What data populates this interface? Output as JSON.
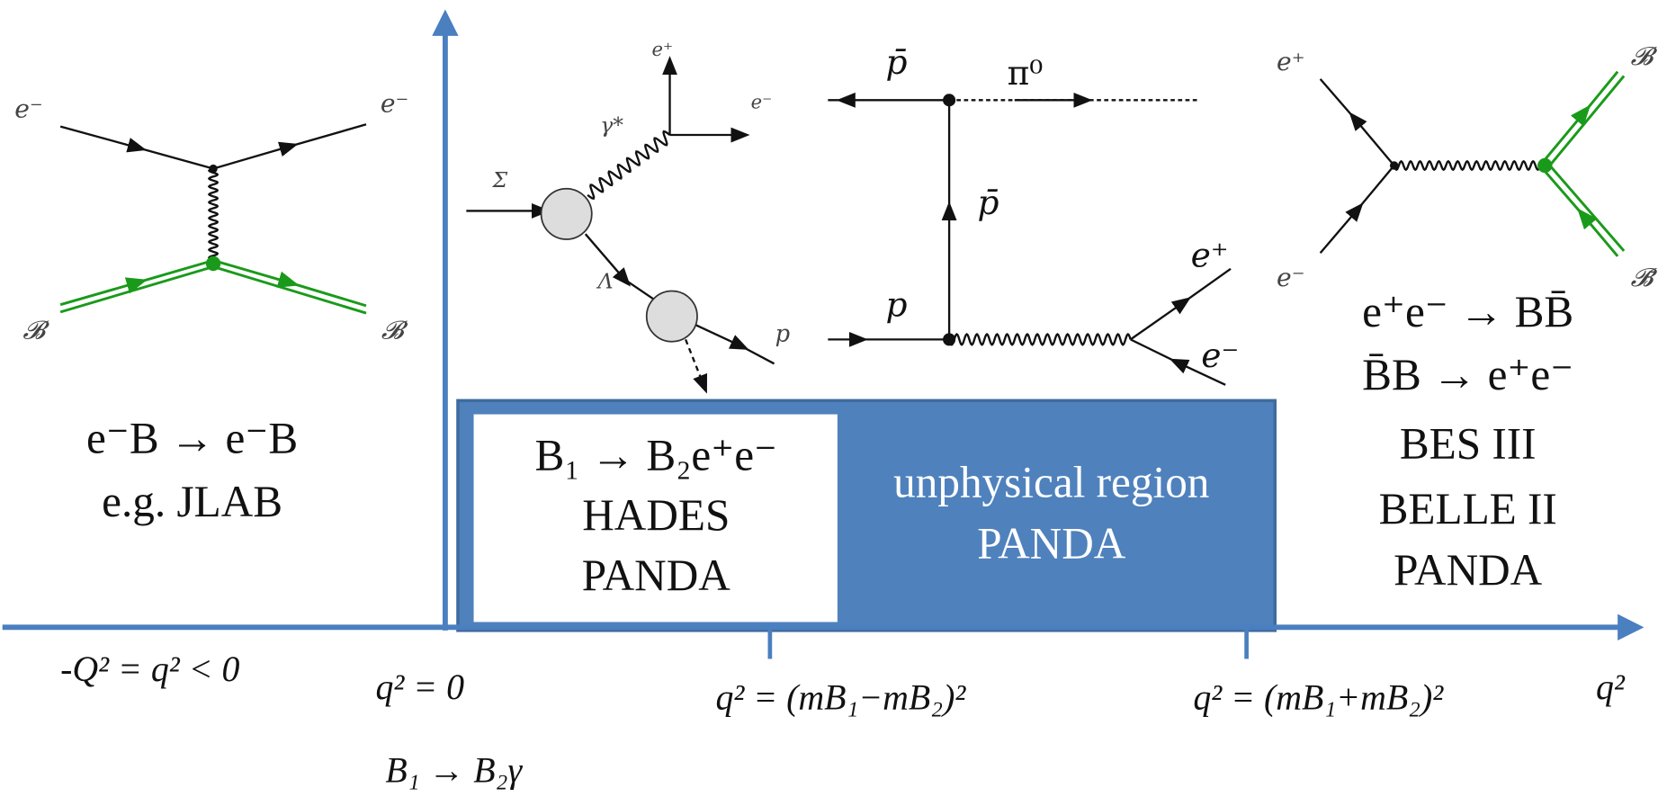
{
  "diagrams": [
    {
      "labels": [
        "e⁻",
        "e⁻",
        "𝓑",
        "𝓑"
      ],
      "caption": [
        "e⁻B → e⁻B",
        "e.g. JLAB"
      ]
    },
    {
      "labels": [
        "e⁺",
        "e⁻",
        "γ*",
        "Σ",
        "Λ",
        "p"
      ]
    },
    {
      "labels": [
        "p̄",
        "π⁰",
        "p̄",
        "p",
        "e⁺",
        "e⁻"
      ]
    },
    {
      "labels": [
        "e⁺",
        "e⁻",
        "𝓑",
        "𝓑̄"
      ],
      "caption": [
        "e⁺e⁻ → BB̄",
        "B̄B → e⁺e⁻",
        "BES III",
        "BELLE II",
        "PANDA"
      ]
    }
  ],
  "regions": [
    {
      "lines": [
        "B₁ → B₂e⁺e⁻",
        "HADES",
        "PANDA"
      ]
    },
    {
      "lines": [
        "unphysical region",
        "PANDA"
      ]
    }
  ],
  "axis": {
    "label": "q²",
    "ticks": [
      "-Q² = q² < 0",
      "q² = 0",
      "q² = (mB₁−mB₂)²",
      "q² = (mB₁+mB₂)²"
    ],
    "below_origin": "B₁ → B₂γ"
  }
}
